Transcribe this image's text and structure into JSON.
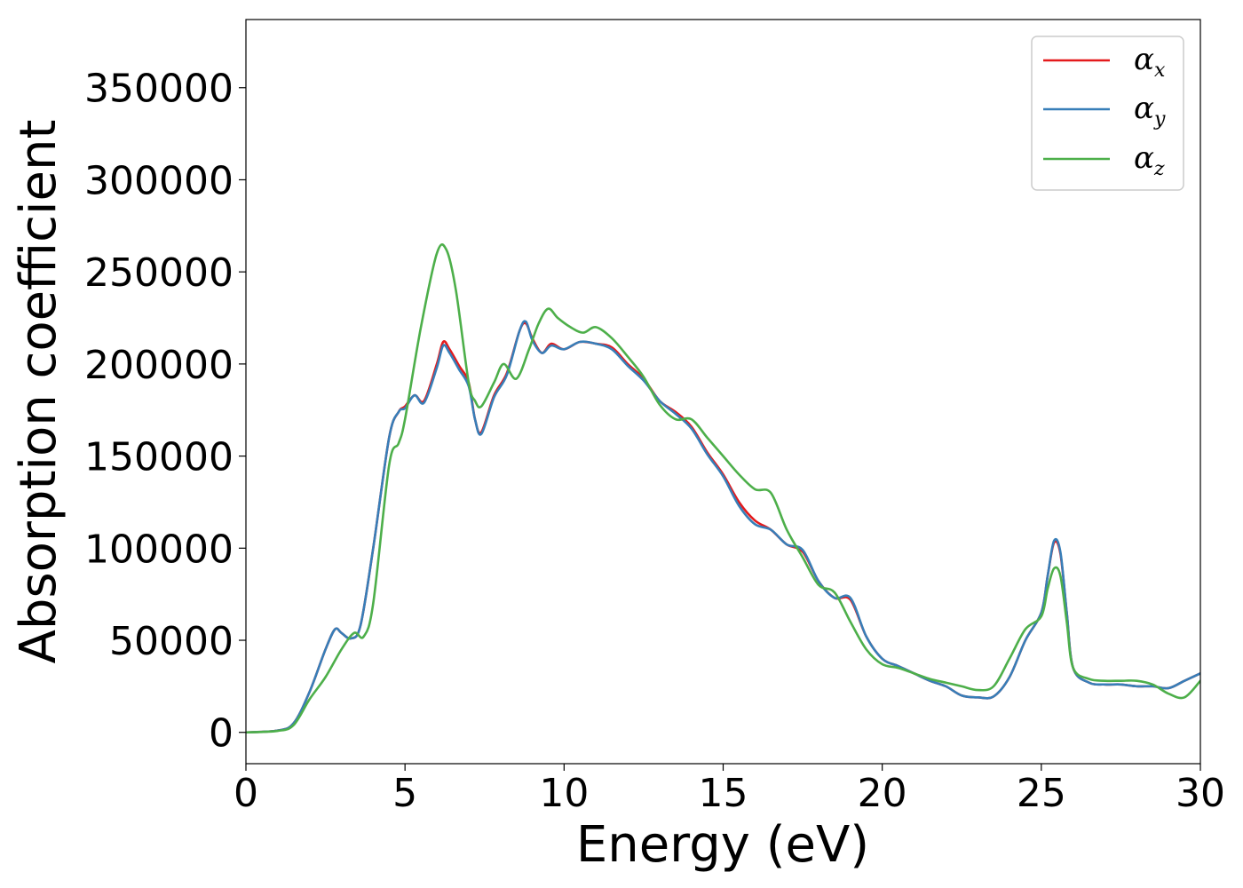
{
  "chart_data": {
    "type": "line",
    "xlabel": "Energy (eV)",
    "ylabel": "Absorption coefficient",
    "xlim": [
      0,
      30
    ],
    "ylim": [
      -17000,
      387000
    ],
    "xticks": [
      "0",
      "5",
      "10",
      "15",
      "20",
      "25",
      "30"
    ],
    "xtick_values": [
      0,
      5,
      10,
      15,
      20,
      25,
      30
    ],
    "yticks": [
      "0",
      "50000",
      "100000",
      "150000",
      "200000",
      "250000",
      "300000",
      "350000"
    ],
    "ytick_values": [
      0,
      50000,
      100000,
      150000,
      200000,
      250000,
      300000,
      350000
    ],
    "grid": false,
    "legend_position": "top-right",
    "series": [
      {
        "name": "α_x",
        "label_main": "α",
        "label_sub": "x",
        "color": "#e41a1c",
        "x": [
          0,
          1.0,
          1.5,
          2.0,
          2.5,
          2.8,
          3.0,
          3.3,
          3.6,
          4.0,
          4.5,
          4.8,
          5.0,
          5.3,
          5.6,
          6.0,
          6.2,
          6.4,
          6.7,
          7.0,
          7.2,
          7.4,
          7.8,
          8.2,
          8.6,
          8.8,
          9.0,
          9.3,
          9.6,
          10.0,
          10.5,
          11.0,
          11.5,
          12.0,
          12.5,
          13.0,
          13.5,
          14.0,
          14.5,
          15.0,
          15.5,
          16.0,
          16.5,
          17.0,
          17.5,
          18.0,
          18.5,
          19.0,
          19.5,
          20.0,
          20.5,
          21.0,
          21.5,
          22.0,
          22.5,
          23.0,
          23.5,
          24.0,
          24.5,
          25.0,
          25.2,
          25.4,
          25.6,
          25.8,
          26.0,
          26.5,
          27.0,
          27.5,
          28.0,
          28.5,
          29.0,
          29.5,
          30.0
        ],
        "y": [
          0,
          1000,
          5000,
          22000,
          45000,
          56000,
          54000,
          51000,
          58000,
          100000,
          160000,
          174000,
          177000,
          183000,
          180000,
          200000,
          212000,
          208000,
          199000,
          190000,
          170000,
          163000,
          183000,
          195000,
          218000,
          222000,
          214000,
          206000,
          211000,
          208000,
          212000,
          211000,
          209000,
          200000,
          192000,
          180000,
          174000,
          166000,
          152000,
          140000,
          125000,
          115000,
          110000,
          102000,
          98000,
          82000,
          73000,
          72000,
          52000,
          40000,
          36000,
          32000,
          28000,
          25000,
          20000,
          19000,
          19500,
          30000,
          50000,
          65000,
          85000,
          103000,
          97000,
          65000,
          35000,
          27000,
          26000,
          26000,
          25000,
          25000,
          24000,
          28000,
          32000
        ]
      },
      {
        "name": "α_y",
        "label_main": "α",
        "label_sub": "y",
        "color": "#377eb8",
        "x": [
          0,
          1.0,
          1.5,
          2.0,
          2.5,
          2.8,
          3.0,
          3.3,
          3.6,
          4.0,
          4.5,
          4.8,
          5.0,
          5.3,
          5.6,
          6.0,
          6.2,
          6.4,
          6.7,
          7.0,
          7.2,
          7.4,
          7.8,
          8.2,
          8.6,
          8.8,
          9.0,
          9.3,
          9.6,
          10.0,
          10.5,
          11.0,
          11.5,
          12.0,
          12.5,
          13.0,
          13.5,
          14.0,
          14.5,
          15.0,
          15.5,
          16.0,
          16.5,
          17.0,
          17.5,
          18.0,
          18.5,
          19.0,
          19.5,
          20.0,
          20.5,
          21.0,
          21.5,
          22.0,
          22.5,
          23.0,
          23.5,
          24.0,
          24.5,
          25.0,
          25.2,
          25.4,
          25.6,
          25.8,
          26.0,
          26.5,
          27.0,
          27.5,
          28.0,
          28.5,
          29.0,
          29.5,
          30.0
        ],
        "y": [
          0,
          1000,
          5000,
          22000,
          45000,
          56000,
          54000,
          51000,
          58000,
          100000,
          160000,
          174000,
          176000,
          183000,
          179000,
          198000,
          210000,
          206000,
          197000,
          188000,
          170000,
          162000,
          182000,
          194000,
          218000,
          223000,
          213000,
          206000,
          210000,
          208000,
          212000,
          211000,
          208000,
          199000,
          191000,
          180000,
          173000,
          165000,
          151000,
          139000,
          123000,
          113000,
          110000,
          102000,
          99000,
          82000,
          73000,
          73000,
          52000,
          40000,
          36000,
          32000,
          28000,
          25000,
          20000,
          19000,
          19500,
          30000,
          50000,
          65000,
          85000,
          104000,
          98000,
          65000,
          35000,
          27000,
          26000,
          26000,
          25000,
          25000,
          24000,
          28000,
          32000
        ]
      },
      {
        "name": "α_z",
        "label_main": "α",
        "label_sub": "z",
        "color": "#4daf4a",
        "x": [
          0,
          1.0,
          1.5,
          2.0,
          2.5,
          3.0,
          3.4,
          3.7,
          4.0,
          4.5,
          4.8,
          5.0,
          5.5,
          6.0,
          6.3,
          6.6,
          7.0,
          7.2,
          7.4,
          7.8,
          8.1,
          8.5,
          8.9,
          9.2,
          9.5,
          9.8,
          10.2,
          10.6,
          11.0,
          11.5,
          12.0,
          12.5,
          13.0,
          13.5,
          14.0,
          14.5,
          15.0,
          15.5,
          16.0,
          16.5,
          17.0,
          17.5,
          18.0,
          18.5,
          19.0,
          19.5,
          20.0,
          20.5,
          21.0,
          21.5,
          22.0,
          22.5,
          23.0,
          23.5,
          24.0,
          24.5,
          25.0,
          25.2,
          25.4,
          25.6,
          25.8,
          26.0,
          26.5,
          27.0,
          27.5,
          28.0,
          28.5,
          29.0,
          29.5,
          30.0
        ],
        "y": [
          0,
          800,
          4000,
          18000,
          30000,
          45000,
          54000,
          52000,
          70000,
          145000,
          157000,
          170000,
          220000,
          260000,
          262000,
          240000,
          190000,
          180000,
          177000,
          190000,
          200000,
          192000,
          208000,
          222000,
          230000,
          225000,
          220000,
          217000,
          220000,
          214000,
          204000,
          193000,
          178000,
          170000,
          170000,
          160000,
          150000,
          140000,
          132000,
          130000,
          110000,
          95000,
          80000,
          76000,
          60000,
          45000,
          37000,
          35000,
          32000,
          29000,
          27000,
          25000,
          23000,
          25000,
          40000,
          56000,
          63000,
          78000,
          89000,
          85000,
          60000,
          35000,
          29000,
          28000,
          28000,
          28000,
          26000,
          21000,
          19000,
          28000
        ]
      }
    ]
  }
}
